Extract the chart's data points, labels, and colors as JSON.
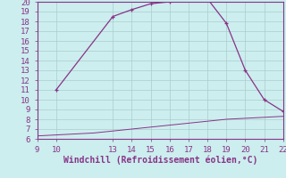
{
  "x_upper": [
    10,
    13,
    14,
    15,
    16,
    17,
    18,
    19,
    20,
    21,
    22
  ],
  "y_upper": [
    11,
    18.5,
    19.2,
    19.8,
    20.0,
    20.5,
    20.3,
    17.8,
    13.0,
    10.0,
    8.8
  ],
  "x_lower": [
    9,
    10,
    11,
    12,
    13,
    14,
    15,
    16,
    17,
    18,
    19,
    20,
    21,
    22
  ],
  "y_lower": [
    6.3,
    6.4,
    6.5,
    6.6,
    6.8,
    7.0,
    7.2,
    7.4,
    7.6,
    7.8,
    8.0,
    8.1,
    8.2,
    8.3
  ],
  "line_color": "#883388",
  "bg_color": "#cceeee",
  "grid_color": "#aacccc",
  "xlabel": "Windchill (Refroidissement éolien,°C)",
  "xlim": [
    9,
    22
  ],
  "ylim": [
    6,
    20
  ],
  "xticks": [
    9,
    10,
    13,
    14,
    15,
    16,
    17,
    18,
    19,
    20,
    21,
    22
  ],
  "yticks": [
    6,
    7,
    8,
    9,
    10,
    11,
    12,
    13,
    14,
    15,
    16,
    17,
    18,
    19,
    20
  ],
  "tick_color": "#883388",
  "label_color": "#883388",
  "font_size": 6.5,
  "xlabel_fontsize": 7
}
